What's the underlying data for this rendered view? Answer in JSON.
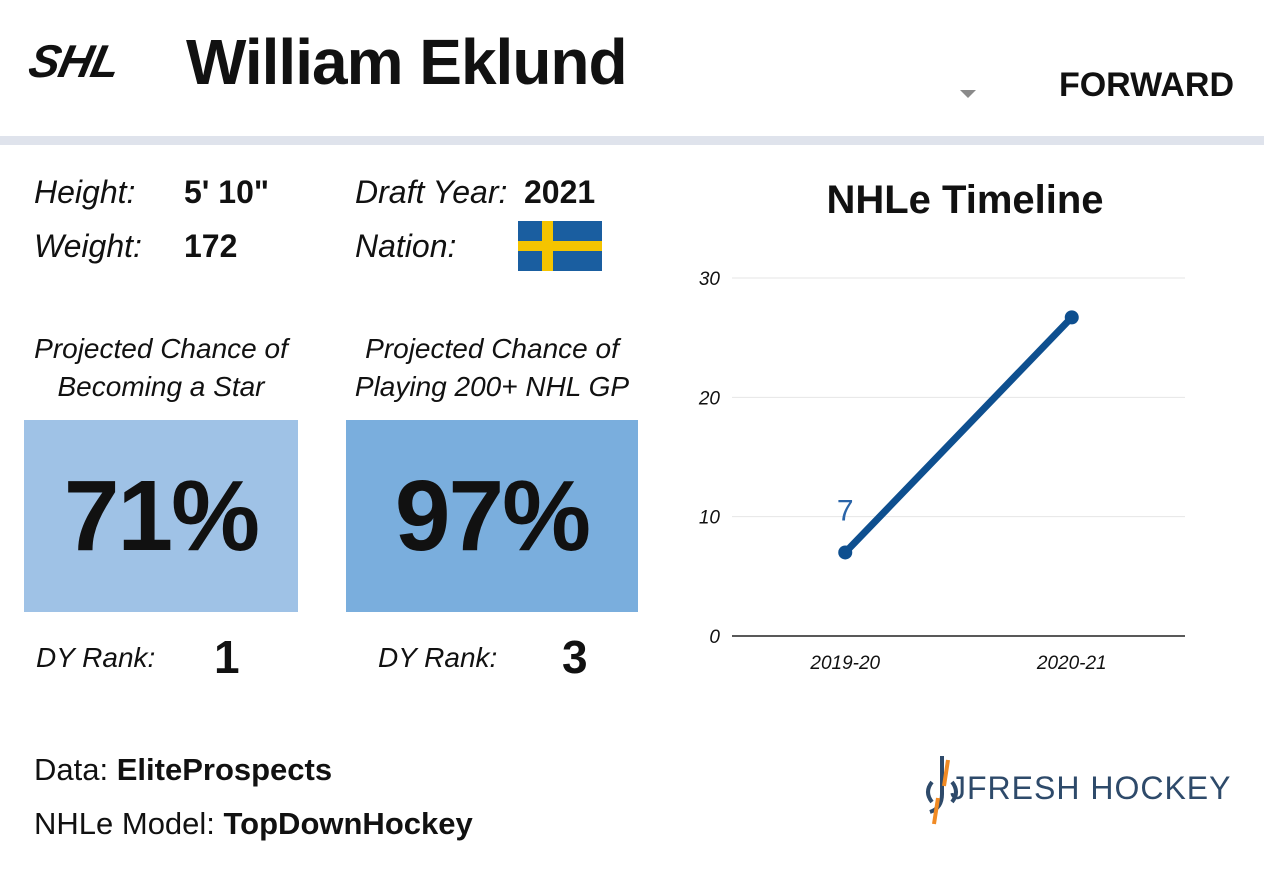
{
  "header": {
    "league_logo": "SHL",
    "player_name": "William Eklund",
    "position": "FORWARD"
  },
  "bio": {
    "height_label": "Height:",
    "height_value": "5' 10\"",
    "weight_label": "Weight:",
    "weight_value": "172",
    "draft_year_label": "Draft Year:",
    "draft_year_value": "2021",
    "nation_label": "Nation:",
    "nation_flag": "sweden-flag"
  },
  "projections": [
    {
      "caption_line1": "Projected Chance of",
      "caption_line2": "Becoming a Star",
      "value": "71%",
      "rank_label": "DY Rank:",
      "rank_value": "1",
      "box_color": "#9fc2e6"
    },
    {
      "caption_line1": "Projected Chance of",
      "caption_line2": "Playing 200+ NHL GP",
      "value": "97%",
      "rank_label": "DY Rank:",
      "rank_value": "3",
      "box_color": "#7aaedd"
    }
  ],
  "chart_data": {
    "type": "line",
    "title": "NHLe Timeline",
    "categories": [
      "2019-20",
      "2020-21"
    ],
    "series": [
      {
        "name": "NHLe",
        "values": [
          7,
          26.7
        ]
      }
    ],
    "data_labels": [
      {
        "category": "2019-20",
        "text": "7"
      }
    ],
    "yticks": [
      "0",
      "10",
      "20",
      "30"
    ],
    "ylim": [
      0,
      30
    ],
    "xlabel": "",
    "ylabel": "",
    "grid": true,
    "line_color": "#0e4f8f",
    "label_color": "#2a64a8"
  },
  "footer": {
    "data_prefix": "Data:",
    "data_source": "EliteProspects",
    "model_prefix": "NHLe Model:",
    "model_source": "TopDownHockey",
    "brand": "JFRESH HOCKEY"
  }
}
